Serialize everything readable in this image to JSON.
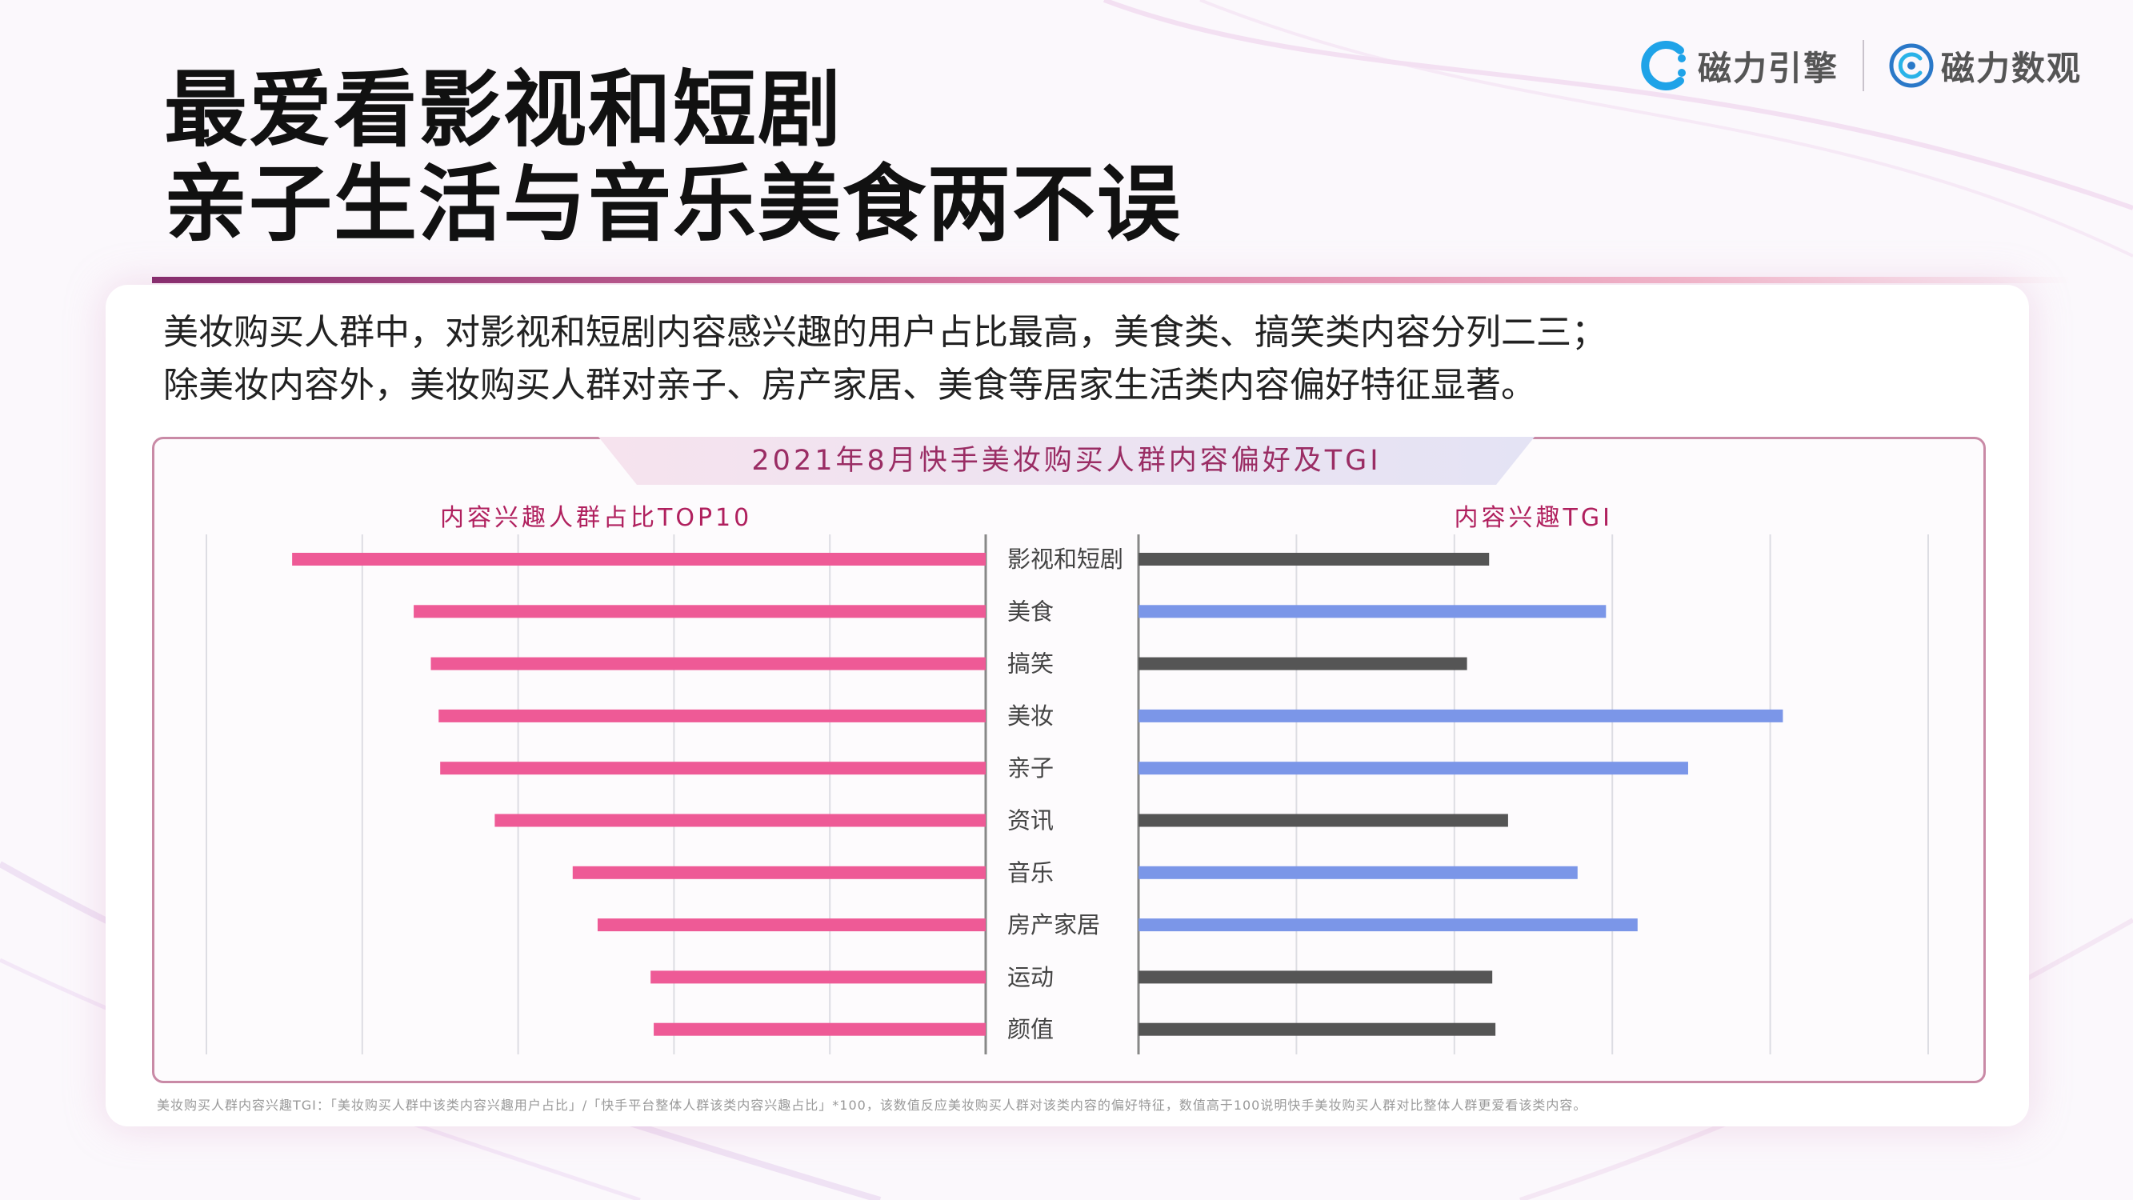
{
  "title": {
    "line1": "最爱看影视和短剧",
    "line2": "亲子生活与音乐美食两不误"
  },
  "brand": {
    "logo1": "磁力引擎",
    "logo2": "磁力数观",
    "logo1_icon": "c-arc-logo-icon",
    "logo2_icon": "concentric-circle-logo-icon"
  },
  "summary": {
    "line1": "美妆购买人群中，对影视和短剧内容感兴趣的用户占比最高，美食类、搞笑类内容分列二三；",
    "line2": "除美妆内容外，美妆购买人群对亲子、房产家居、美食等居家生活类内容偏好特征显著。"
  },
  "footnote": "美妆购买人群内容兴趣TGI：「美妆购买人群中该类内容兴趣用户占比」/「快手平台整体人群该类内容兴趣占比」*100，该数值反应美妆购买人群对该类内容的偏好特征，数值高于100说明快手美妆购买人群对比整体人群更爱看该类内容。",
  "colors": {
    "pink_bar": "#ee5a96",
    "gray_bar": "#555555",
    "blue_bar": "#7b96e8",
    "accent": "#b0205e"
  },
  "chart_data": {
    "type": "bar",
    "title": "2021年8月快手美妆购买人群内容偏好及TGI",
    "categories": [
      "影视和短剧",
      "美食",
      "搞笑",
      "美妆",
      "亲子",
      "资讯",
      "音乐",
      "房产家居",
      "运动",
      "颜值"
    ],
    "panels": [
      {
        "name": "内容兴趣人群占比TOP10",
        "orientation": "leftward",
        "values": [
          44.5,
          36.7,
          35.6,
          35.1,
          35.0,
          31.5,
          26.5,
          24.9,
          21.5,
          21.3
        ],
        "xlim": [
          0,
          50
        ],
        "grid": true
      },
      {
        "name": "内容兴趣TGI",
        "orientation": "rightward",
        "values": [
          111,
          148,
          104,
          204,
          174,
          117,
          139,
          158,
          112,
          113
        ],
        "highlight": [
          false,
          true,
          false,
          true,
          true,
          false,
          true,
          true,
          false,
          false
        ],
        "xlim": [
          0,
          250
        ],
        "grid": true
      }
    ]
  }
}
